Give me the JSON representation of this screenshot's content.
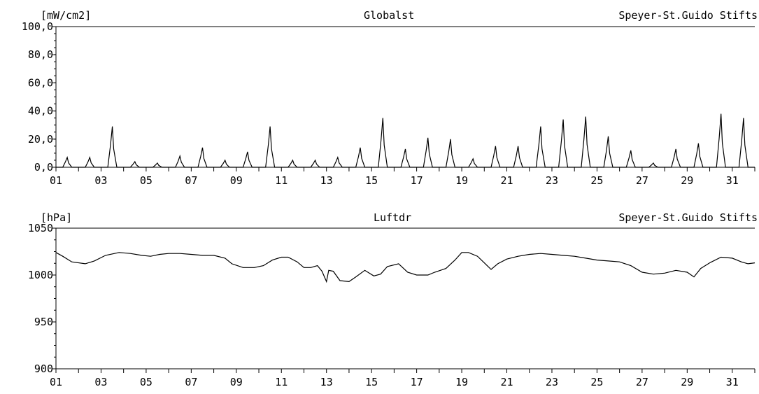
{
  "chart_data": [
    {
      "type": "line",
      "unit_label": "[mW/cm2]",
      "parameter": "Globalst",
      "station": "Speyer-St.Guido Stifts",
      "ylim": [
        0,
        100
      ],
      "yticks": [
        "0,0",
        "20,0",
        "40,0",
        "60,0",
        "80,0",
        "100,0"
      ],
      "xlim": [
        1,
        32
      ],
      "xticks": [
        "01",
        "03",
        "05",
        "07",
        "09",
        "11",
        "13",
        "15",
        "17",
        "19",
        "21",
        "23",
        "25",
        "27",
        "29",
        "31"
      ],
      "series": [
        {
          "daily_peaks": [
            {
              "day": 1,
              "peak": 7
            },
            {
              "day": 2,
              "peak": 7
            },
            {
              "day": 3,
              "peak": 29
            },
            {
              "day": 4,
              "peak": 4
            },
            {
              "day": 5,
              "peak": 3
            },
            {
              "day": 6,
              "peak": 8
            },
            {
              "day": 7,
              "peak": 14
            },
            {
              "day": 8,
              "peak": 5
            },
            {
              "day": 9,
              "peak": 11
            },
            {
              "day": 10,
              "peak": 29
            },
            {
              "day": 11,
              "peak": 5
            },
            {
              "day": 12,
              "peak": 5
            },
            {
              "day": 13,
              "peak": 7
            },
            {
              "day": 14,
              "peak": 14
            },
            {
              "day": 15,
              "peak": 35
            },
            {
              "day": 16,
              "peak": 13
            },
            {
              "day": 17,
              "peak": 21
            },
            {
              "day": 18,
              "peak": 20
            },
            {
              "day": 19,
              "peak": 6
            },
            {
              "day": 20,
              "peak": 15
            },
            {
              "day": 21,
              "peak": 15
            },
            {
              "day": 22,
              "peak": 29
            },
            {
              "day": 23,
              "peak": 34
            },
            {
              "day": 24,
              "peak": 36
            },
            {
              "day": 25,
              "peak": 22
            },
            {
              "day": 26,
              "peak": 12
            },
            {
              "day": 27,
              "peak": 3
            },
            {
              "day": 28,
              "peak": 13
            },
            {
              "day": 29,
              "peak": 17
            },
            {
              "day": 30,
              "peak": 38
            },
            {
              "day": 31,
              "peak": 35
            }
          ]
        }
      ]
    },
    {
      "type": "line",
      "unit_label": "[hPa]",
      "parameter": "Luftdr",
      "station": "Speyer-St.Guido Stifts",
      "ylim": [
        900,
        1050
      ],
      "yticks": [
        "900",
        "950",
        "1000",
        "1050"
      ],
      "xlim": [
        1,
        32
      ],
      "xticks": [
        "01",
        "03",
        "05",
        "07",
        "09",
        "11",
        "13",
        "15",
        "17",
        "19",
        "21",
        "23",
        "25",
        "27",
        "29",
        "31"
      ],
      "series": [
        {
          "points": [
            [
              1.0,
              1024
            ],
            [
              1.3,
              1020
            ],
            [
              1.7,
              1014
            ],
            [
              2.3,
              1012
            ],
            [
              2.7,
              1015
            ],
            [
              3.2,
              1021
            ],
            [
              3.8,
              1024
            ],
            [
              4.3,
              1023
            ],
            [
              4.8,
              1021
            ],
            [
              5.2,
              1020
            ],
            [
              5.6,
              1022
            ],
            [
              6.0,
              1023
            ],
            [
              6.5,
              1023
            ],
            [
              7.0,
              1022
            ],
            [
              7.5,
              1021
            ],
            [
              8.0,
              1021
            ],
            [
              8.5,
              1018
            ],
            [
              8.8,
              1012
            ],
            [
              9.3,
              1008
            ],
            [
              9.8,
              1008
            ],
            [
              10.2,
              1010
            ],
            [
              10.6,
              1016
            ],
            [
              11.0,
              1019
            ],
            [
              11.3,
              1019
            ],
            [
              11.7,
              1014
            ],
            [
              12.0,
              1008
            ],
            [
              12.3,
              1008
            ],
            [
              12.6,
              1010
            ],
            [
              12.8,
              1004
            ],
            [
              13.0,
              993
            ],
            [
              13.1,
              1005
            ],
            [
              13.3,
              1004
            ],
            [
              13.6,
              994
            ],
            [
              14.0,
              993
            ],
            [
              14.3,
              998
            ],
            [
              14.7,
              1005
            ],
            [
              15.1,
              999
            ],
            [
              15.4,
              1001
            ],
            [
              15.7,
              1009
            ],
            [
              16.2,
              1012
            ],
            [
              16.6,
              1003
            ],
            [
              17.0,
              1000
            ],
            [
              17.5,
              1000
            ],
            [
              17.8,
              1003
            ],
            [
              18.3,
              1007
            ],
            [
              18.7,
              1016
            ],
            [
              19.0,
              1024
            ],
            [
              19.3,
              1024
            ],
            [
              19.7,
              1020
            ],
            [
              20.0,
              1013
            ],
            [
              20.3,
              1006
            ],
            [
              20.6,
              1012
            ],
            [
              21.0,
              1017
            ],
            [
              21.5,
              1020
            ],
            [
              22.0,
              1022
            ],
            [
              22.5,
              1023
            ],
            [
              23.0,
              1022
            ],
            [
              23.5,
              1021
            ],
            [
              24.0,
              1020
            ],
            [
              24.5,
              1018
            ],
            [
              25.0,
              1016
            ],
            [
              25.5,
              1015
            ],
            [
              26.0,
              1014
            ],
            [
              26.5,
              1010
            ],
            [
              27.0,
              1003
            ],
            [
              27.5,
              1001
            ],
            [
              28.0,
              1002
            ],
            [
              28.5,
              1005
            ],
            [
              29.0,
              1003
            ],
            [
              29.3,
              998
            ],
            [
              29.6,
              1007
            ],
            [
              30.0,
              1013
            ],
            [
              30.5,
              1019
            ],
            [
              31.0,
              1018
            ],
            [
              31.4,
              1014
            ],
            [
              31.7,
              1012
            ],
            [
              32.0,
              1013
            ]
          ]
        }
      ]
    }
  ]
}
